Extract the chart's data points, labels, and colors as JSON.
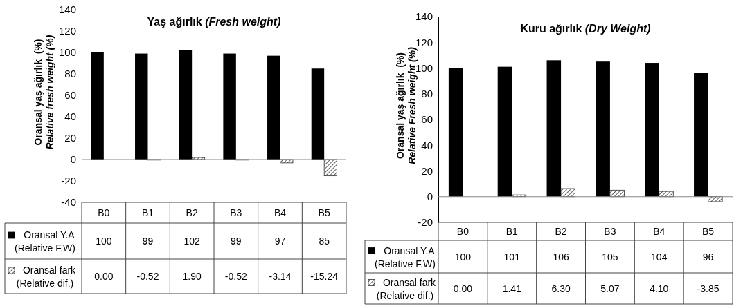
{
  "chart_data": [
    {
      "type": "bar",
      "legend": "bottom left",
      "title": "Yaş ağırlık (Fresh weight)",
      "ylabel": "Oransal yaş ağırlık  (%)\nRelative fresh weight (%)",
      "categories": [
        "B0",
        "B1",
        "B2",
        "B3",
        "B4",
        "B5"
      ],
      "ylim": [
        -40,
        140
      ],
      "yticks": [
        -40,
        -20,
        0,
        20,
        40,
        60,
        80,
        100,
        120,
        140
      ],
      "series": [
        {
          "name": "Oransal Y.A (Relative F.W)",
          "color": "#000000",
          "values": [
            100,
            99,
            102,
            99,
            97,
            85
          ],
          "value_labels": [
            "100",
            "99",
            "102",
            "99",
            "97",
            "85"
          ]
        },
        {
          "name": "Oransal fark (Relative dif.)",
          "color": "#333333",
          "values": [
            0.0,
            -0.52,
            1.9,
            -0.52,
            -3.14,
            -15.24
          ],
          "value_labels": [
            "0.00",
            "-0.52",
            "1.90",
            "-0.52",
            "-3.14",
            "-15.24"
          ]
        }
      ]
    },
    {
      "type": "bar",
      "legend": "bottom left",
      "title": "Kuru ağırlık (Dry Weight)",
      "ylabel": "Oransal yaş ağırlık  (%)\nRelative Fresh weight (%)",
      "categories": [
        "B0",
        "B1",
        "B2",
        "B3",
        "B4",
        "B5"
      ],
      "ylim": [
        -20,
        140
      ],
      "yticks": [
        -20,
        0,
        20,
        40,
        60,
        80,
        100,
        120,
        140
      ],
      "series": [
        {
          "name": "Oransal Y.A (Relative F.W)",
          "color": "#000000",
          "values": [
            100,
            101,
            106,
            105,
            104,
            96
          ],
          "value_labels": [
            "100",
            "101",
            "106",
            "105",
            "104",
            "96"
          ]
        },
        {
          "name": "Oransal fark (Relative dif.)",
          "color": "#333333",
          "values": [
            0.0,
            1.41,
            6.3,
            5.07,
            4.1,
            -3.85
          ],
          "value_labels": [
            "0.00",
            "1.41",
            "6.30",
            "5.07",
            "4.10",
            "-3.85"
          ]
        }
      ]
    }
  ]
}
